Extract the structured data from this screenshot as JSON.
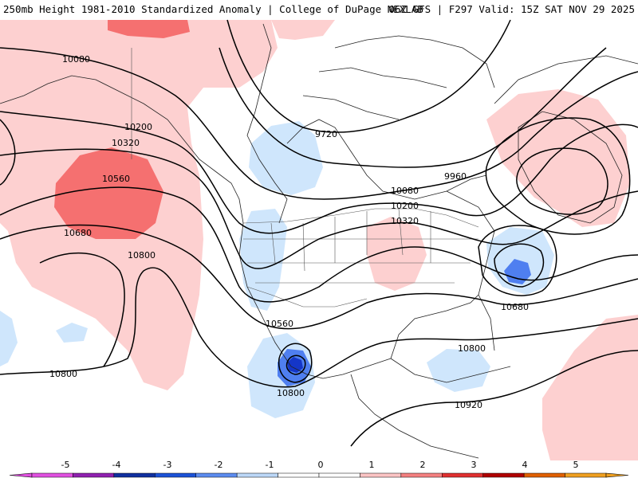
{
  "title": {
    "left": "250mb Height 1981-2010 Standardized Anomaly | College of DuPage NEXLAB",
    "right": "06Z GFS | F297 Valid: 15Z SAT NOV 29 2025"
  },
  "colors": {
    "pos1": "#fdd0d0",
    "pos2": "#f57070",
    "neg1": "#cfe6fc",
    "neg2": "#4f7ff0",
    "neg3": "#1436c8",
    "coast": "#222222",
    "contour": "#000000"
  },
  "contour_labels": [
    {
      "name": "label-10080-nw",
      "text": "10080"
    },
    {
      "name": "label-10200-nw",
      "text": "10200"
    },
    {
      "name": "label-10320-nw",
      "text": "10320"
    },
    {
      "name": "label-10560-nw",
      "text": "10560"
    },
    {
      "name": "label-10680-nw",
      "text": "10680"
    },
    {
      "name": "label-10800-pac",
      "text": "10800"
    },
    {
      "name": "label-9720",
      "text": "9720"
    },
    {
      "name": "label-9960",
      "text": "9960"
    },
    {
      "name": "label-10080-c",
      "text": "10080"
    },
    {
      "name": "label-10200-c",
      "text": "10200"
    },
    {
      "name": "label-10320-c",
      "text": "10320"
    },
    {
      "name": "label-10680-e",
      "text": "10680"
    },
    {
      "name": "label-10560-mx",
      "text": "10560"
    },
    {
      "name": "label-10800-carib",
      "text": "10800"
    },
    {
      "name": "label-10800-sw",
      "text": "10800"
    },
    {
      "name": "label-10800-mx",
      "text": "10800"
    },
    {
      "name": "label-10920",
      "text": "10920"
    }
  ],
  "colorbar": {
    "ticks": [
      "-5",
      "-4",
      "-3",
      "-2",
      "-1",
      "0",
      "1",
      "2",
      "3",
      "4",
      "5"
    ],
    "colors": [
      "#e050e0",
      "#9020b0",
      "#1030a0",
      "#1c52d8",
      "#5c8cf0",
      "#bcd8f8",
      "#ffffff",
      "#ffffff",
      "#fcc4c4",
      "#f48080",
      "#e03030",
      "#b00000",
      "#e06000",
      "#f0a020"
    ]
  }
}
